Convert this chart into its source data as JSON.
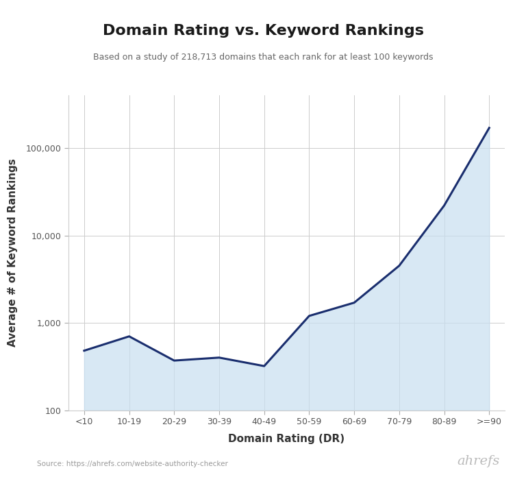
{
  "title": "Domain Rating vs. Keyword Rankings",
  "subtitle": "Based on a study of 218,713 domains that each rank for at least 100 keywords",
  "xlabel": "Domain Rating (DR)",
  "ylabel": "Average # of Keyword Rankings",
  "source": "Source: https://ahrefs.com/website-authority-checker",
  "brand": "ahrefs",
  "categories": [
    "<10",
    "10-19",
    "20-29",
    "30-39",
    "40-49",
    "50-59",
    "60-69",
    "70-79",
    "80-89",
    ">=90"
  ],
  "values": [
    480,
    700,
    370,
    400,
    320,
    1200,
    1700,
    4500,
    22000,
    170000
  ],
  "line_color": "#1a2e6e",
  "fill_color": "#c8dff0",
  "fill_alpha": 0.7,
  "line_width": 2.2,
  "background_color": "#ffffff",
  "grid_color": "#cccccc",
  "ylim_log_min": 100,
  "ylim_log_max": 400000,
  "yticks": [
    100,
    1000,
    10000,
    100000
  ],
  "ytick_labels": [
    "100",
    "1,000",
    "10,000",
    "100,000"
  ],
  "title_fontsize": 16,
  "subtitle_fontsize": 9,
  "label_fontsize": 11,
  "tick_fontsize": 9,
  "source_fontsize": 7.5,
  "brand_fontsize": 14
}
